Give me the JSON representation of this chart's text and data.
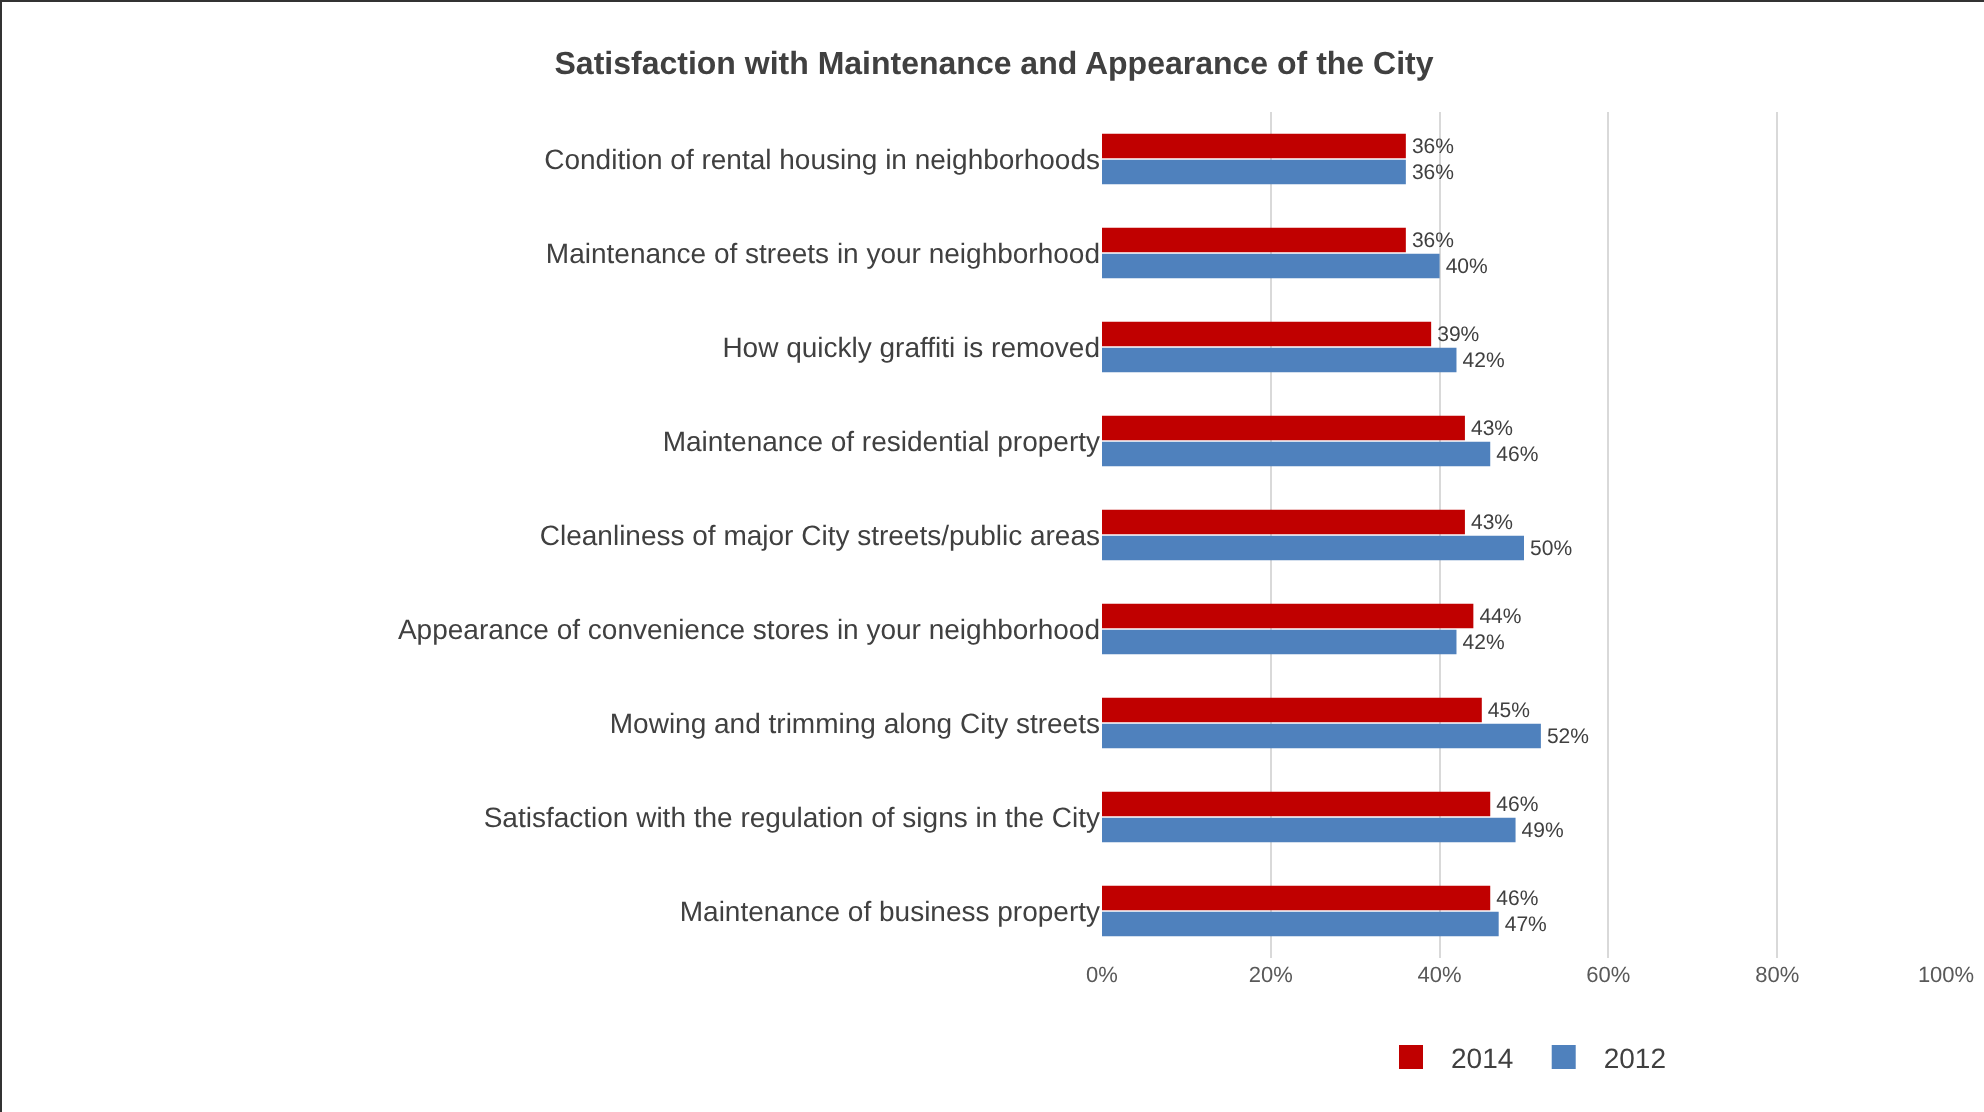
{
  "chart_data": {
    "type": "bar",
    "orientation": "horizontal",
    "title": "Satisfaction with Maintenance and Appearance of the City",
    "categories": [
      "Condition of rental housing in neighborhoods",
      "Maintenance of streets in your neighborhood",
      "How quickly graffiti is removed",
      "Maintenance of residential property",
      "Cleanliness of major City streets/public areas",
      "Appearance of convenience stores in your neighborhood",
      "Mowing and trimming along City streets",
      "Satisfaction with the regulation of signs in the City",
      "Maintenance of business property"
    ],
    "series": [
      {
        "name": "2014",
        "color": "#c00000",
        "values": [
          36,
          36,
          39,
          43,
          43,
          44,
          45,
          46,
          46
        ],
        "value_labels": [
          "36%",
          "36%",
          "39%",
          "43%",
          "43%",
          "44%",
          "45%",
          "46%",
          "46%"
        ]
      },
      {
        "name": "2012",
        "color": "#4f81bd",
        "values": [
          36,
          40,
          42,
          46,
          50,
          42,
          52,
          49,
          47
        ],
        "value_labels": [
          "36%",
          "40%",
          "42%",
          "46%",
          "50%",
          "42%",
          "52%",
          "49%",
          "47%"
        ]
      }
    ],
    "xlim": [
      0,
      100
    ],
    "xticks": [
      {
        "value": 0,
        "label": "0%"
      },
      {
        "value": 20,
        "label": "20%"
      },
      {
        "value": 40,
        "label": "40%"
      },
      {
        "value": 60,
        "label": "60%"
      },
      {
        "value": 80,
        "label": "80%"
      },
      {
        "value": 100,
        "label": "100%"
      }
    ],
    "grid": "x",
    "legend": "bottom"
  }
}
